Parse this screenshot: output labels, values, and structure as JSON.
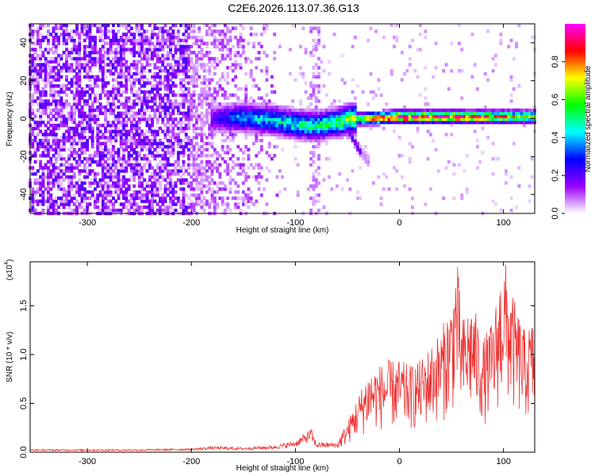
{
  "figure_title": "C2E6.2026.113.07.36.G13",
  "chart_data": [
    {
      "type": "heatmap",
      "title": "C2E6.2026.113.07.36.G13",
      "xlabel": "Height of straight line (km)",
      "ylabel": "Frequency (Hz)",
      "xlim": [
        -355,
        130
      ],
      "ylim": [
        -50,
        50
      ],
      "x_ticks": [
        -300,
        -200,
        -100,
        0,
        100
      ],
      "x_tick_labels": [
        "-300",
        "-200",
        "-100",
        "0",
        "100"
      ],
      "y_ticks": [
        -40,
        -20,
        0,
        20,
        40
      ],
      "y_tick_labels": [
        "-40",
        "-20",
        "0",
        "20",
        "40"
      ],
      "colorbar": {
        "label": "Normalized spectral amplitude",
        "range": [
          0,
          1
        ],
        "ticks": [
          0.0,
          0.2,
          0.4,
          0.6,
          0.8
        ],
        "tick_labels": [
          "0.0",
          "0.2",
          "0.4",
          "0.6",
          "0.8"
        ],
        "colors": [
          "#ffffff",
          "#9900ff",
          "#0000ff",
          "#00ffff",
          "#00ff00",
          "#ffff00",
          "#ff0000",
          "#ff00ff"
        ]
      },
      "features": {
        "noise_region_x": [
          -355,
          -200
        ],
        "noise_region_amplitude": 0.15,
        "fading_region_x": [
          -200,
          -115
        ],
        "sparse_column_x": -82,
        "signal_band_x": [
          -180,
          130
        ],
        "signal_band_center_hz": [
          [
            -180,
            0
          ],
          [
            -150,
            0.5
          ],
          [
            -120,
            -1
          ],
          [
            -100,
            -3
          ],
          [
            -80,
            -4
          ],
          [
            -60,
            -2
          ],
          [
            -45,
            0
          ],
          [
            -30,
            0
          ],
          [
            0,
            1
          ],
          [
            50,
            1
          ],
          [
            100,
            1
          ],
          [
            130,
            1
          ]
        ],
        "signal_band_amplitude": [
          [
            -180,
            0.2
          ],
          [
            -150,
            0.4
          ],
          [
            -120,
            0.45
          ],
          [
            -100,
            0.5
          ],
          [
            -80,
            0.5
          ],
          [
            -60,
            0.55
          ],
          [
            -40,
            0.7
          ],
          [
            -20,
            0.9
          ],
          [
            0,
            1.0
          ],
          [
            60,
            0.95
          ],
          [
            100,
            0.8
          ],
          [
            130,
            0.7
          ]
        ],
        "tail_to_lower_right": [
          [
            -50,
            -5
          ],
          [
            -38,
            -17
          ],
          [
            -30,
            -22
          ]
        ]
      }
    },
    {
      "type": "line",
      "title": "",
      "xlabel": "Height of straight line (km)",
      "ylabel": "SNR (10 * v/v)",
      "y_scale_label": "(x10",
      "y_scale_exponent": "4",
      "y_scale_suffix": ")",
      "xlim": [
        -355,
        130
      ],
      "ylim": [
        0,
        1.95
      ],
      "x_ticks": [
        -300,
        -200,
        -100,
        0,
        100
      ],
      "x_tick_labels": [
        "-300",
        "-200",
        "-100",
        "0",
        "100"
      ],
      "y_ticks": [
        0.0,
        0.5,
        1.0,
        1.5
      ],
      "y_tick_labels": [
        "0.0",
        "0.5",
        "1.0",
        "1.5"
      ],
      "series": [
        {
          "name": "SNR",
          "color": "#ee3333",
          "envelope": [
            [
              -355,
              0.03
            ],
            [
              -300,
              0.03
            ],
            [
              -250,
              0.03
            ],
            [
              -200,
              0.04
            ],
            [
              -180,
              0.06
            ],
            [
              -150,
              0.05
            ],
            [
              -120,
              0.07
            ],
            [
              -100,
              0.12
            ],
            [
              -90,
              0.2
            ],
            [
              -85,
              0.25
            ],
            [
              -80,
              0.1
            ],
            [
              -60,
              0.1
            ],
            [
              -50,
              0.3
            ],
            [
              -40,
              0.55
            ],
            [
              -30,
              0.8
            ],
            [
              -20,
              0.85
            ],
            [
              -10,
              0.9
            ],
            [
              0,
              0.9
            ],
            [
              10,
              0.85
            ],
            [
              20,
              0.9
            ],
            [
              30,
              1.05
            ],
            [
              40,
              1.2
            ],
            [
              50,
              1.5
            ],
            [
              55,
              1.95
            ],
            [
              60,
              1.3
            ],
            [
              70,
              1.5
            ],
            [
              80,
              1.1
            ],
            [
              90,
              1.3
            ],
            [
              100,
              1.95
            ],
            [
              110,
              1.5
            ],
            [
              120,
              1.2
            ],
            [
              130,
              1.3
            ]
          ]
        }
      ]
    }
  ]
}
